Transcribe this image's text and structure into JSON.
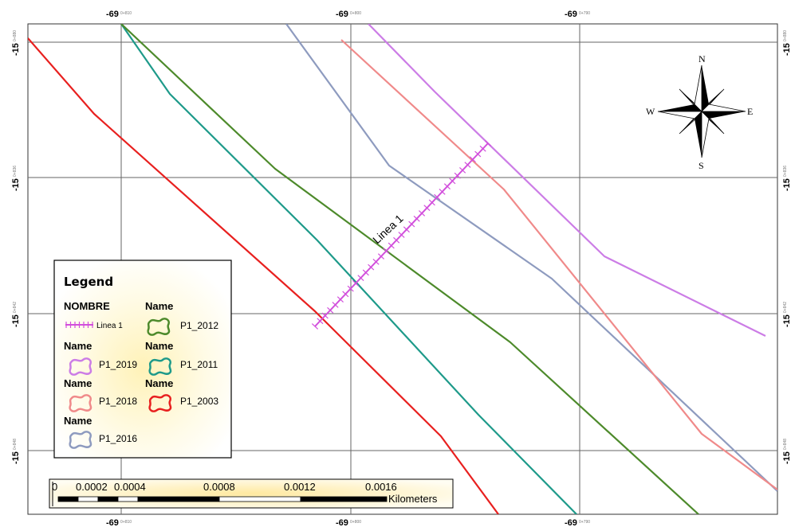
{
  "map": {
    "colors": {
      "P1_2003": "#e8201f",
      "P1_2011": "#1e9a8a",
      "P1_2012": "#4d8a2b",
      "P1_2016": "#8e9bbf",
      "P1_2018": "#f08a8a",
      "P1_2019": "#cc7de6",
      "Linea 1": "#d24fdc",
      "grid": "#555555"
    },
    "grid_labels": {
      "top": [
        {
          "main": "-69",
          "sup": "0+810"
        },
        {
          "main": "-69",
          "sup": "0+800"
        },
        {
          "main": "-69",
          "sup": "0+790"
        }
      ],
      "bottom": [
        {
          "main": "-69",
          "sup": "0+810"
        },
        {
          "main": "-69",
          "sup": "0+800"
        },
        {
          "main": "-69",
          "sup": "0+790"
        }
      ],
      "left": [
        {
          "main": "-15",
          "sup": "0+880"
        },
        {
          "main": "-15",
          "sup": "0+836"
        },
        {
          "main": "-15",
          "sup": "0+842"
        },
        {
          "main": "-15",
          "sup": "0+848"
        }
      ],
      "right": [
        {
          "main": "-15",
          "sup": "0+880"
        },
        {
          "main": "-15",
          "sup": "0+836"
        },
        {
          "main": "-15",
          "sup": "0+842"
        },
        {
          "main": "-15",
          "sup": "0+848"
        }
      ]
    },
    "line_label": "Linea 1",
    "compass": {
      "n": "N",
      "s": "S",
      "e": "E",
      "w": "W"
    }
  },
  "legend": {
    "title": "Legend",
    "groups": [
      {
        "heading": "NOMBRE",
        "label": "Linea 1",
        "kind": "line",
        "key": "Linea 1"
      },
      {
        "heading": "Name",
        "label": "P1_2012",
        "kind": "polygon",
        "key": "P1_2012"
      },
      {
        "heading": "Name",
        "label": "P1_2019",
        "kind": "polygon",
        "key": "P1_2019"
      },
      {
        "heading": "Name",
        "label": "P1_2011",
        "kind": "polygon",
        "key": "P1_2011"
      },
      {
        "heading": "Name",
        "label": "P1_2018",
        "kind": "polygon",
        "key": "P1_2018"
      },
      {
        "heading": "Name",
        "label": "P1_2003",
        "kind": "polygon",
        "key": "P1_2003"
      },
      {
        "heading": "Name",
        "label": "P1_2016",
        "kind": "polygon",
        "key": "P1_2016"
      }
    ]
  },
  "scalebar": {
    "ticks": [
      "0",
      "0.0002",
      "0.0004",
      "0.0008",
      "0.0012",
      "0.0016"
    ],
    "unit": "Kilometers"
  }
}
